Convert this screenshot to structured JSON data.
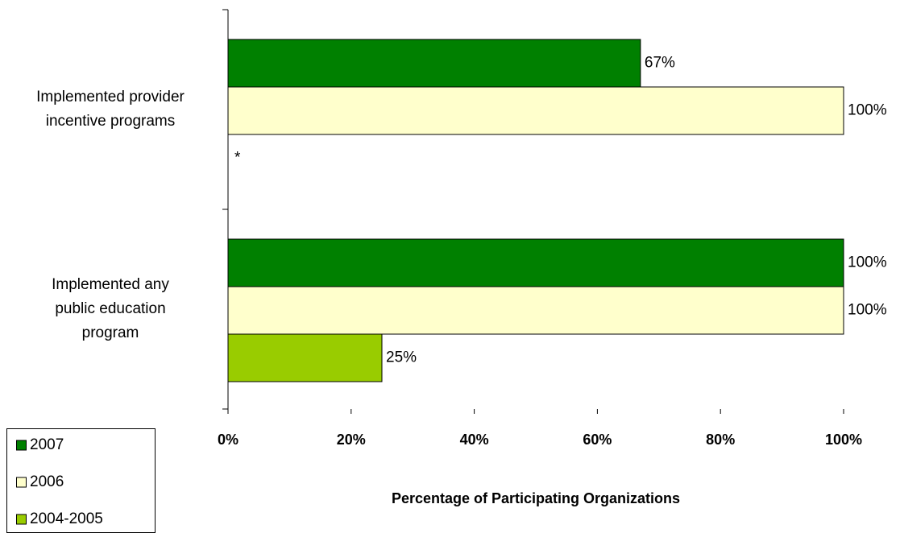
{
  "chart_data": {
    "type": "hbar",
    "categories": [
      "Implemented provider incentive programs",
      "Implemented any public education program"
    ],
    "series": [
      {
        "name": "2007",
        "color": "#008000",
        "values": [
          67,
          100
        ],
        "value_labels": [
          "67%",
          "100%"
        ]
      },
      {
        "name": "2006",
        "color": "#ffffcc",
        "values": [
          100,
          100
        ],
        "value_labels": [
          "100%",
          "100%"
        ]
      },
      {
        "name": "2004-2005",
        "color": "#99cc00",
        "values": [
          null,
          25
        ],
        "value_labels": [
          null,
          "25%"
        ]
      }
    ],
    "note": "*",
    "xlabel": "Percentage of Participating Organizations",
    "xlim": [
      0,
      100
    ],
    "xticks": [
      {
        "value": 0,
        "label": "0%"
      },
      {
        "value": 20,
        "label": "20%"
      },
      {
        "value": 40,
        "label": "40%"
      },
      {
        "value": 60,
        "label": "60%"
      },
      {
        "value": 80,
        "label": "80%"
      },
      {
        "value": 100,
        "label": "100%"
      }
    ],
    "legend": "bottom-left"
  }
}
